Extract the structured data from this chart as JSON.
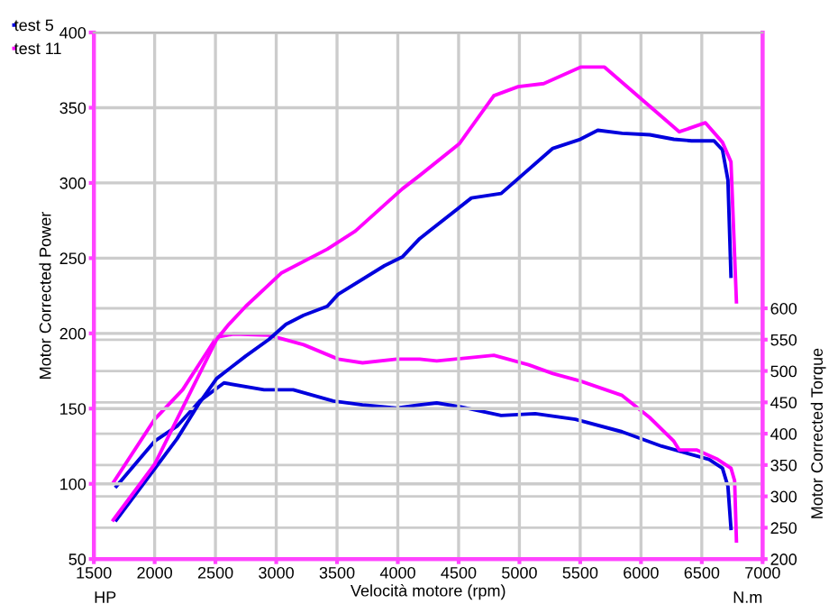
{
  "chart_data": {
    "type": "line",
    "xlabel": "Velocità motore (rpm)",
    "ylabel": "Motor Corrected Power",
    "y2label": "Motor Corrected Torque",
    "annotations": [
      "HP",
      "N.m"
    ],
    "xlim": [
      1500,
      7000
    ],
    "xticks": [
      1500,
      2000,
      2500,
      3000,
      3500,
      4000,
      4500,
      5000,
      5500,
      6000,
      6500,
      7000
    ],
    "ylim": [
      50,
      400
    ],
    "yticks": [
      50,
      100,
      150,
      200,
      250,
      300,
      350,
      400
    ],
    "y2lim": [
      200,
      1040
    ],
    "y2ticks": [
      200,
      250,
      300,
      350,
      400,
      450,
      500,
      550,
      600
    ],
    "grid": true,
    "legend": "top left",
    "marker": "none",
    "line_style": "solid",
    "series": [
      {
        "name": "test 5",
        "color": "#0000dd",
        "x": [
          1685,
          2000,
          2185,
          2370,
          2510,
          2750,
          2940,
          3080,
          3225,
          3420,
          3510,
          3890,
          4040,
          4180,
          4605,
          4850,
          5275,
          5500,
          5645,
          5845,
          6073,
          6270,
          6415,
          6600,
          6670,
          6715,
          6740
        ],
        "values": [
          76,
          110,
          130,
          154,
          170,
          185,
          196,
          206,
          212,
          218,
          226,
          245,
          251,
          263,
          290,
          293,
          323,
          329,
          335,
          333,
          332,
          329,
          328,
          328,
          322,
          302,
          238
        ]
      },
      {
        "name": "test 11",
        "color": "#ff00ff",
        "x": [
          1660,
          2000,
          2325,
          2510,
          2610,
          2750,
          3040,
          3420,
          3650,
          4036,
          4180,
          4505,
          4790,
          4990,
          5200,
          5503,
          5700,
          6315,
          6530,
          6670,
          6740,
          6785
        ],
        "values": [
          76,
          113,
          166,
          196,
          206,
          218,
          240,
          256,
          268,
          296,
          305,
          326,
          358,
          364,
          366,
          377,
          377,
          334,
          340,
          327,
          314,
          221
        ]
      },
      {
        "color": "#0000dd",
        "axis": "y2",
        "x": [
          1685,
          2000,
          2185,
          2370,
          2570,
          2900,
          3140,
          3470,
          3710,
          3990,
          4180,
          4320,
          4510,
          4850,
          5130,
          5460,
          5845,
          6170,
          6560,
          6670,
          6715,
          6740
        ],
        "values": [
          316,
          388,
          412,
          452,
          481,
          470,
          470,
          452,
          446,
          441,
          446,
          449,
          443,
          429,
          432,
          423,
          403,
          380,
          359,
          345,
          316,
          249
        ]
      },
      {
        "color": "#ff00ff",
        "axis": "y2",
        "x": [
          1660,
          2000,
          2230,
          2510,
          2650,
          2940,
          3225,
          3510,
          3710,
          3990,
          4180,
          4320,
          4790,
          5075,
          5275,
          5500,
          5845,
          6070,
          6270,
          6315,
          6460,
          6630,
          6740,
          6770,
          6785
        ],
        "values": [
          322,
          423,
          470,
          554,
          559,
          557,
          542,
          519,
          513,
          519,
          519,
          516,
          525,
          510,
          496,
          484,
          461,
          426,
          388,
          374,
          374,
          359,
          345,
          325,
          229
        ]
      }
    ]
  }
}
